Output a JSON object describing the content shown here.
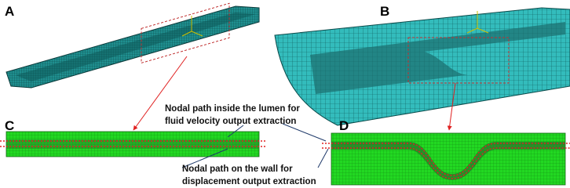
{
  "panels": [
    {
      "label": "A"
    },
    {
      "label": "B"
    },
    {
      "label": "C"
    },
    {
      "label": "D"
    }
  ],
  "annotations": [
    {
      "lines": [
        "Nodal path inside the lumen for",
        "fluid velocity output extraction"
      ]
    },
    {
      "lines": [
        "Nodal path on the wall for",
        "displacement output extraction"
      ]
    }
  ]
}
